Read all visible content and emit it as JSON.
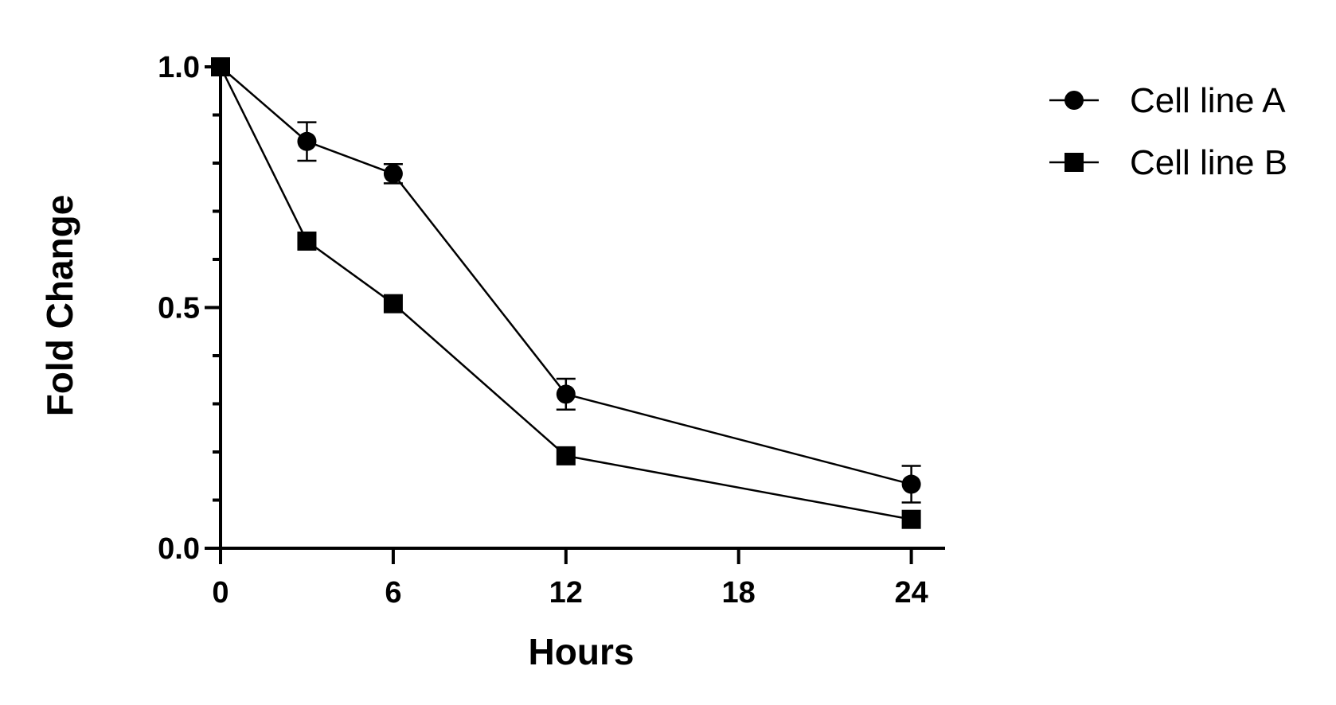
{
  "chart_data": {
    "type": "line",
    "title": "",
    "xlabel": "Hours",
    "ylabel": "Fold Change",
    "xlim": [
      0,
      25
    ],
    "ylim": [
      0,
      1.0
    ],
    "x_ticks": [
      0,
      6,
      12,
      18,
      24
    ],
    "x_tick_labels": [
      "0",
      "6",
      "12",
      "18",
      "24"
    ],
    "y_ticks": [
      0,
      0.5,
      1.0
    ],
    "y_tick_labels": [
      "0.0",
      "0.5",
      "1.0"
    ],
    "y_minor_step": 0.1,
    "grid": false,
    "legend_position": "top-right",
    "series": [
      {
        "name": "Cell line A",
        "marker": "circle",
        "color": "#000000",
        "x": [
          0,
          3,
          6,
          12,
          24
        ],
        "y": [
          1.0,
          0.845,
          0.778,
          0.32,
          0.133
        ],
        "error": [
          0.0,
          0.04,
          0.02,
          0.032,
          0.038
        ]
      },
      {
        "name": "Cell line B",
        "marker": "square",
        "color": "#000000",
        "x": [
          0,
          3,
          6,
          12,
          24
        ],
        "y": [
          1.0,
          0.638,
          0.508,
          0.192,
          0.06
        ],
        "error": [
          0.0,
          0.0,
          0.0,
          0.0,
          0.0
        ]
      }
    ]
  }
}
